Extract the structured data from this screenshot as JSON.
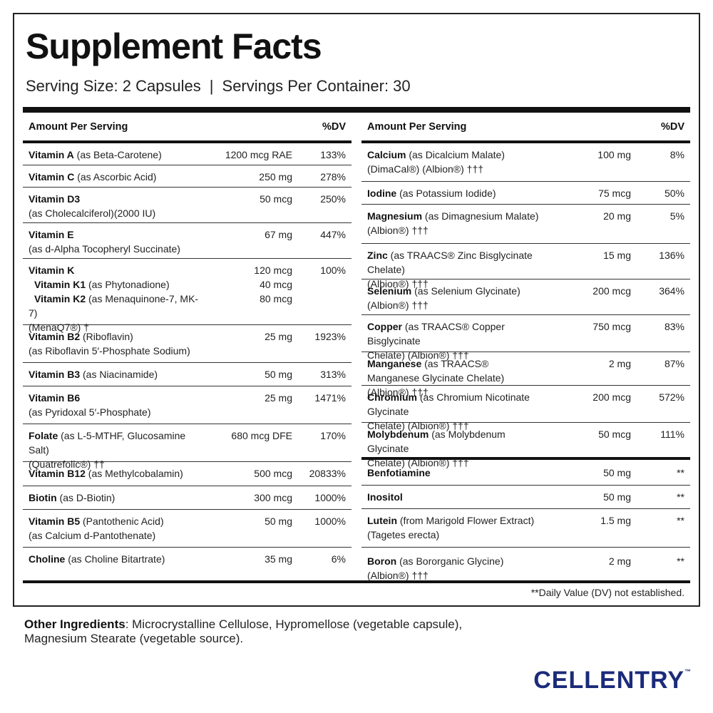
{
  "title": "Supplement Facts",
  "serving_size": "Serving Size: 2 Capsules",
  "separator": "|",
  "servings_per_container": "Servings Per Container: 30",
  "header": {
    "amount_per_serving": "Amount Per Serving",
    "dv": "%DV"
  },
  "left_rows": [
    {
      "bold": "Vitamin A",
      "rest": " (as Beta-Carotene)",
      "amount": "1200 mcg RAE",
      "dv": "133%"
    },
    {
      "bold": "Vitamin C",
      "rest": " (as Ascorbic Acid)",
      "amount": "250 mg",
      "dv": "278%"
    },
    {
      "bold": "Vitamin D3",
      "rest": "",
      "line2": "(as Cholecalciferol)(2000 IU)",
      "amount": "50 mcg",
      "dv": "250%"
    },
    {
      "bold": "Vitamin E",
      "rest": "",
      "line2": "(as d-Alpha Tocopheryl Succinate)",
      "amount": "67 mg",
      "dv": "447%"
    },
    {
      "bold": "Vitamin K",
      "rest": "",
      "amount": "120 mcg",
      "dv": "100%",
      "sub1_bold": "Vitamin K1",
      "sub1_rest": " (as Phytonadione)",
      "sub1_amount": "40 mcg",
      "sub2_bold": "Vitamin K2",
      "sub2_rest": " (as Menaquinone-7, MK-7)",
      "sub2_amount": "80 mcg",
      "sub2_line2": "(MenaQ7®) †"
    },
    {
      "bold": "Vitamin B2",
      "rest": " (Riboflavin)",
      "line2": "(as Riboflavin 5′-Phosphate Sodium)",
      "amount": "25 mg",
      "dv": "1923%"
    },
    {
      "bold": "Vitamin B3",
      "rest": " (as Niacinamide)",
      "amount": "50 mg",
      "dv": "313%"
    },
    {
      "bold": "Vitamin B6",
      "rest": "",
      "line2": "(as Pyridoxal 5′-Phosphate)",
      "amount": "25 mg",
      "dv": "1471%"
    },
    {
      "bold": "Folate",
      "rest": " (as L-5-MTHF, Glucosamine Salt)",
      "line2": "(Quatrefolic®) ††",
      "amount": "680 mcg DFE",
      "dv": "170%"
    },
    {
      "bold": "Vitamin B12",
      "rest": " (as Methylcobalamin)",
      "amount": "500 mcg",
      "dv": "20833%"
    },
    {
      "bold": "Biotin",
      "rest": " (as D-Biotin)",
      "amount": "300 mcg",
      "dv": "1000%"
    },
    {
      "bold": "Vitamin B5",
      "rest": " (Pantothenic Acid)",
      "line2": "(as Calcium d-Pantothenate)",
      "amount": "50 mg",
      "dv": "1000%"
    },
    {
      "bold": "Choline",
      "rest": " (as Choline Bitartrate)",
      "amount": "35 mg",
      "dv": "6%"
    }
  ],
  "right_rows": [
    {
      "bold": "Calcium",
      "rest": " (as Dicalcium Malate)",
      "line2": "(DimaCal®) (Albion®) †††",
      "amount": "100 mg",
      "dv": "8%"
    },
    {
      "bold": "Iodine",
      "rest": " (as Potassium Iodide)",
      "amount": "75 mcg",
      "dv": "50%"
    },
    {
      "bold": "Magnesium",
      "rest": " (as Dimagnesium Malate)",
      "line2": "(Albion®) †††",
      "amount": "20 mg",
      "dv": "5%"
    },
    {
      "bold": "Zinc",
      "rest": " (as TRAACS® Zinc Bisglycinate Chelate)",
      "line2": "(Albion®) †††",
      "amount": "15 mg",
      "dv": "136%"
    },
    {
      "bold": "Selenium",
      "rest": " (as Selenium Glycinate)",
      "line2": "(Albion®) †††",
      "amount": "200 mcg",
      "dv": "364%"
    },
    {
      "bold": "Copper",
      "rest": " (as TRAACS® Copper Bisglycinate",
      "line2": "Chelate) (Albion®) †††",
      "amount": "750 mcg",
      "dv": "83%"
    },
    {
      "bold": "Manganese",
      "rest": " (as TRAACS®",
      "line2": "Manganese Glycinate Chelate) (Albion®) †††",
      "amount": "2 mg",
      "dv": "87%"
    },
    {
      "bold": "Chromium",
      "rest": " (as Chromium Nicotinate Glycinate",
      "line2": "Chelate) (Albion®) †††",
      "amount": "200 mcg",
      "dv": "572%"
    },
    {
      "bold": "Molybdenum",
      "rest": " (as Molybdenum Glycinate",
      "line2": "Chelate) (Albion®) †††",
      "amount": "50 mcg",
      "dv": "111%"
    },
    {
      "bold": "Benfotiamine",
      "rest": "",
      "amount": "50 mg",
      "dv": "**"
    },
    {
      "bold": "Inositol",
      "rest": "",
      "amount": "50 mg",
      "dv": "**"
    },
    {
      "bold": "Lutein",
      "rest": " (from Marigold Flower Extract)",
      "line2": "(Tagetes erecta)",
      "amount": "1.5 mg",
      "dv": "**"
    },
    {
      "bold": "Boron",
      "rest": " (as Bororganic Glycine) (Albion®) †††",
      "amount": "2 mg",
      "dv": "**"
    }
  ],
  "footnote": "**Daily Value (DV) not established.",
  "other_ingredients_label": "Other Ingredients",
  "other_ingredients_text": ": Microcrystalline Cellulose, Hypromellose (vegetable capsule), Magnesium Stearate (vegetable source).",
  "brand": "CELLENTRY",
  "trademark": "™"
}
